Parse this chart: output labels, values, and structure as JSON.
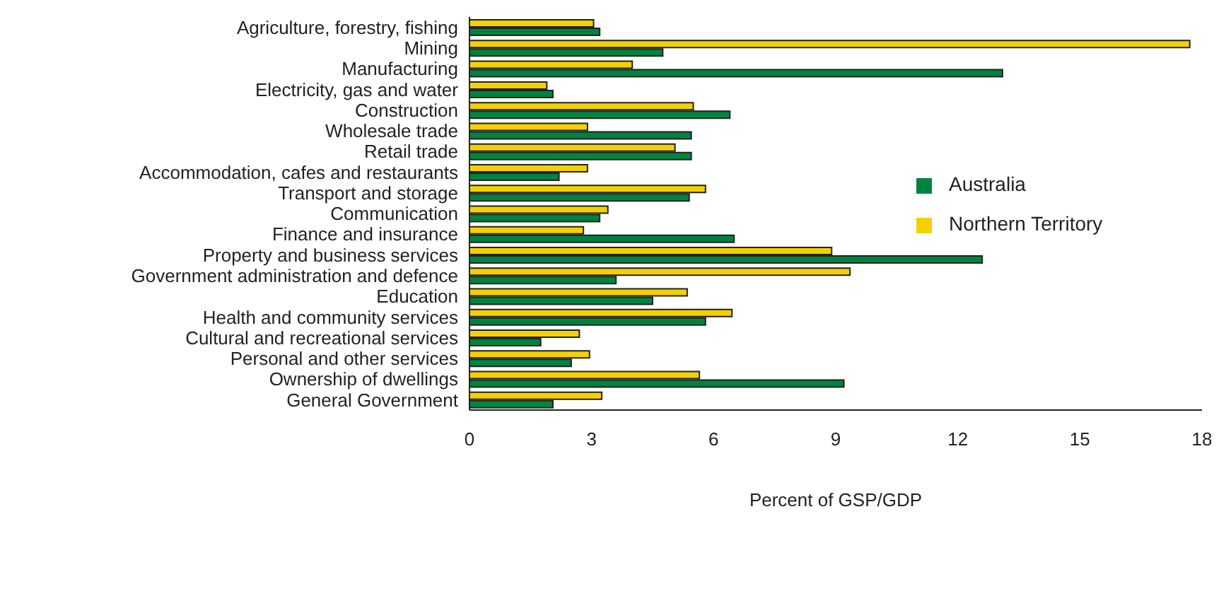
{
  "chart_data": {
    "type": "bar",
    "orientation": "horizontal",
    "xlabel": "Percent of GSP/GDP",
    "categories": [
      "Agriculture, forestry, fishing",
      "Mining",
      "Manufacturing",
      "Electricity, gas and water",
      "Construction",
      "Wholesale trade",
      "Retail trade",
      "Accommodation, cafes and restaurants",
      "Transport and storage",
      "Communication",
      "Finance and insurance",
      "Property and business services",
      "Government administration and defence",
      "Education",
      "Health and community services",
      "Cultural and recreational services",
      "Personal and other services",
      "Ownership of dwellings",
      "General Government"
    ],
    "series": [
      {
        "name": "Northern Territory",
        "color": "#f5d000",
        "values": [
          3.05,
          17.7,
          4.0,
          1.9,
          5.5,
          2.9,
          5.05,
          2.9,
          5.8,
          3.4,
          2.8,
          8.9,
          9.35,
          5.35,
          6.45,
          2.7,
          2.95,
          5.65,
          3.25
        ]
      },
      {
        "name": "Australia",
        "color": "#00833f",
        "values": [
          3.2,
          4.75,
          13.1,
          2.05,
          6.4,
          5.45,
          5.45,
          2.2,
          5.4,
          3.2,
          6.5,
          12.6,
          3.6,
          4.5,
          5.8,
          1.75,
          2.5,
          9.2,
          2.05
        ]
      }
    ],
    "xlim": [
      0,
      18
    ],
    "xticks": [
      0,
      3,
      6,
      9,
      12,
      15,
      18
    ],
    "legend": "right"
  }
}
